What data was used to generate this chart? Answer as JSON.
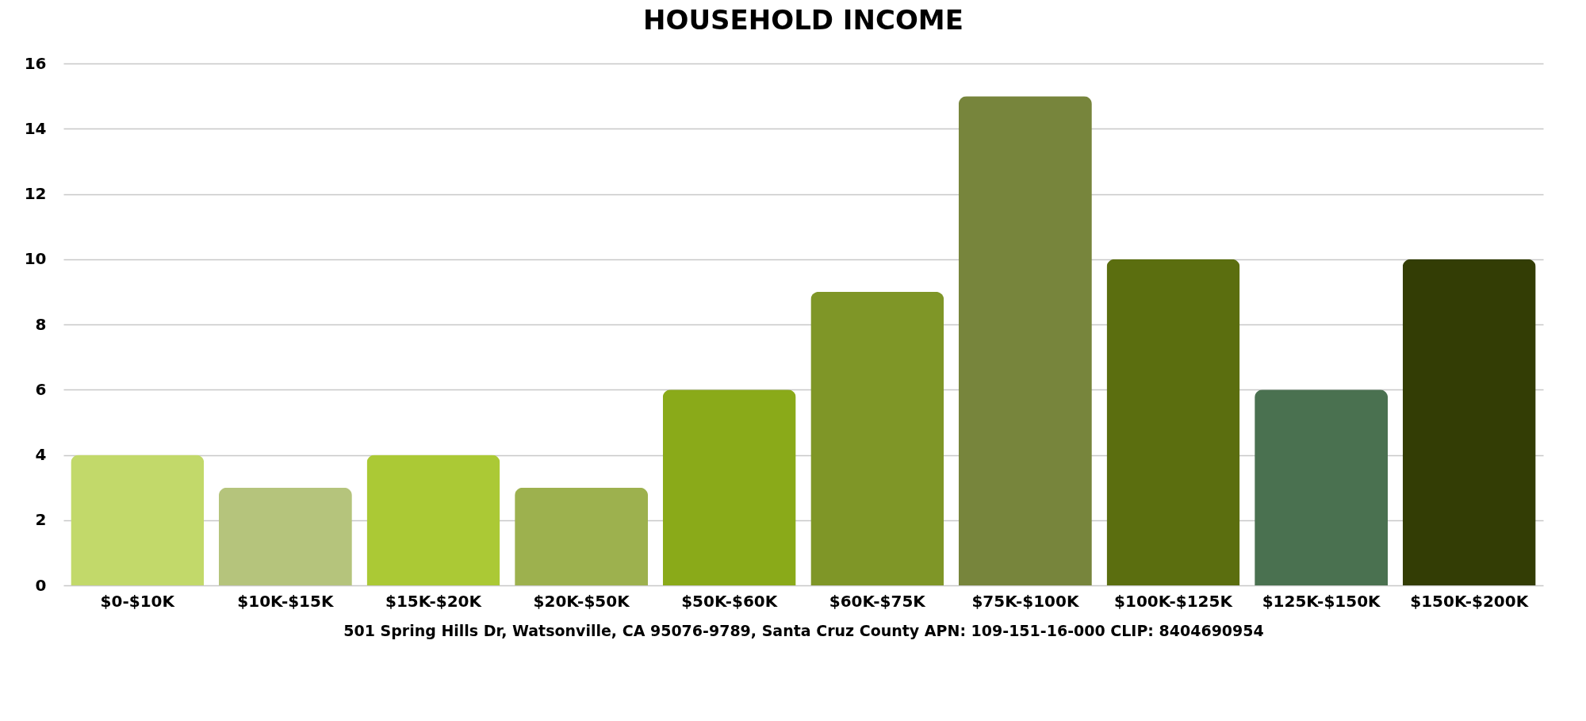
{
  "chart_data": {
    "type": "bar",
    "title": "HOUSEHOLD INCOME",
    "categories": [
      "$0-$10K",
      "$10K-$15K",
      "$15K-$20K",
      "$20K-$50K",
      "$50K-$60K",
      "$60K-$75K",
      "$75K-$100K",
      "$100K-$125K",
      "$125K-$150K",
      "$150K-$200K"
    ],
    "values": [
      4,
      3,
      4,
      3,
      6,
      9,
      15,
      10,
      6,
      10
    ],
    "colors": [
      "#c2d96a",
      "#b5c47c",
      "#abc935",
      "#9db14e",
      "#8aaa19",
      "#7f9627",
      "#77853c",
      "#5b6e0f",
      "#4a7150",
      "#333d05"
    ],
    "ylim": [
      0,
      16
    ],
    "yticks": [
      0,
      2,
      4,
      6,
      8,
      10,
      12,
      14,
      16
    ],
    "grid": "y",
    "annotations": [
      "501 Spring Hills Dr, Watsonville, CA 95076-9789, Santa Cruz County APN: 109-151-16-000 CLIP: 8404690954"
    ]
  }
}
